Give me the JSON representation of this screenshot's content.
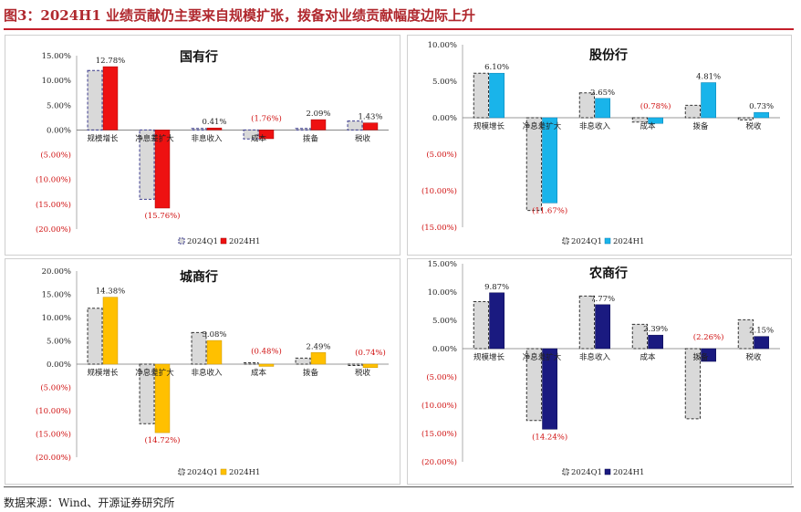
{
  "page": {
    "title": "图3：2024H1 业绩贡献仍主要来自规模扩张，拨备对业绩贡献幅度边际上升",
    "source": "数据来源：Wind、开源证券研究所"
  },
  "legend": {
    "q1": "2024Q1",
    "h1": "2024H1"
  },
  "chart_data": [
    {
      "type": "bar",
      "title": "国有行",
      "categories": [
        "规模增长",
        "净息差扩大",
        "非息收入",
        "成本",
        "拨备",
        "税收"
      ],
      "series": [
        {
          "name": "2024Q1",
          "values": [
            12.0,
            -14.0,
            0.3,
            -1.8,
            0.3,
            1.8
          ]
        },
        {
          "name": "2024H1",
          "values": [
            12.78,
            -15.76,
            0.41,
            -1.76,
            2.09,
            1.43
          ]
        }
      ],
      "data_labels": [
        "12.78%",
        "(15.76%)",
        "0.41%",
        "(1.76%)",
        "2.09%",
        "1.43%"
      ],
      "ylim": [
        -20,
        15
      ],
      "yticks": [
        "15.00%",
        "10.00%",
        "5.00%",
        "0.00%",
        "(5.00%)",
        "(10.00%)",
        "(15.00%)",
        "(20.00%)"
      ],
      "colors": {
        "q1": "#d9d9d9",
        "q1_border": "#3a3a8c",
        "h1": "#ee1111",
        "h1_border": "#a00000"
      },
      "legend_position": "bottom"
    },
    {
      "type": "bar",
      "title": "股份行",
      "categories": [
        "规模增长",
        "净息差扩大",
        "非息收入",
        "成本",
        "拨备",
        "税收"
      ],
      "series": [
        {
          "name": "2024Q1",
          "values": [
            6.1,
            -12.7,
            3.4,
            -0.6,
            1.7,
            -0.3
          ]
        },
        {
          "name": "2024H1",
          "values": [
            6.1,
            -11.67,
            2.65,
            -0.78,
            4.81,
            0.73
          ]
        }
      ],
      "data_labels": [
        "6.10%",
        "(11.67%)",
        "2.65%",
        "(0.78%)",
        "4.81%",
        "0.73%"
      ],
      "ylim": [
        -15,
        10
      ],
      "yticks": [
        "10.00%",
        "5.00%",
        "0.00%",
        "(5.00%)",
        "(10.00%)",
        "(15.00%)"
      ],
      "colors": {
        "q1": "#d9d9d9",
        "q1_border": "#333333",
        "h1": "#19b4ea",
        "h1_border": "#0a7fb0"
      },
      "legend_position": "bottom"
    },
    {
      "type": "bar",
      "title": "城商行",
      "categories": [
        "规模增长",
        "净息差扩大",
        "非息收入",
        "成本",
        "拨备",
        "税收"
      ],
      "series": [
        {
          "name": "2024Q1",
          "values": [
            12.0,
            -12.8,
            6.8,
            0.3,
            1.3,
            -0.3
          ]
        },
        {
          "name": "2024H1",
          "values": [
            14.38,
            -14.72,
            5.08,
            -0.48,
            2.49,
            -0.74
          ]
        }
      ],
      "data_labels": [
        "14.38%",
        "(14.72%)",
        "5.08%",
        "(0.48%)",
        "2.49%",
        "(0.74%)"
      ],
      "ylim": [
        -20,
        20
      ],
      "yticks": [
        "20.00%",
        "15.00%",
        "10.00%",
        "5.00%",
        "0.00%",
        "(5.00%)",
        "(10.00%)",
        "(15.00%)",
        "(20.00%)"
      ],
      "colors": {
        "q1": "#d9d9d9",
        "q1_border": "#333333",
        "h1": "#ffc000",
        "h1_border": "#c89600"
      },
      "legend_position": "bottom"
    },
    {
      "type": "bar",
      "title": "农商行",
      "categories": [
        "规模增长",
        "净息差扩大",
        "非息收入",
        "成本",
        "拨备",
        "税收"
      ],
      "series": [
        {
          "name": "2024Q1",
          "values": [
            8.3,
            -12.7,
            9.3,
            4.3,
            -12.4,
            5.1
          ]
        },
        {
          "name": "2024H1",
          "values": [
            9.87,
            -14.24,
            7.77,
            2.39,
            -2.26,
            2.15
          ]
        }
      ],
      "data_labels": [
        "9.87%",
        "(14.24%)",
        "7.77%",
        "2.39%",
        "(2.26%)",
        "2.15%"
      ],
      "ylim": [
        -20,
        15
      ],
      "yticks": [
        "15.00%",
        "10.00%",
        "5.00%",
        "0.00%",
        "(5.00%)",
        "(10.00%)",
        "(15.00%)",
        "(20.00%)"
      ],
      "colors": {
        "q1": "#d9d9d9",
        "q1_border": "#333333",
        "h1": "#1a1a80",
        "h1_border": "#0d0d50"
      },
      "legend_position": "bottom"
    }
  ]
}
